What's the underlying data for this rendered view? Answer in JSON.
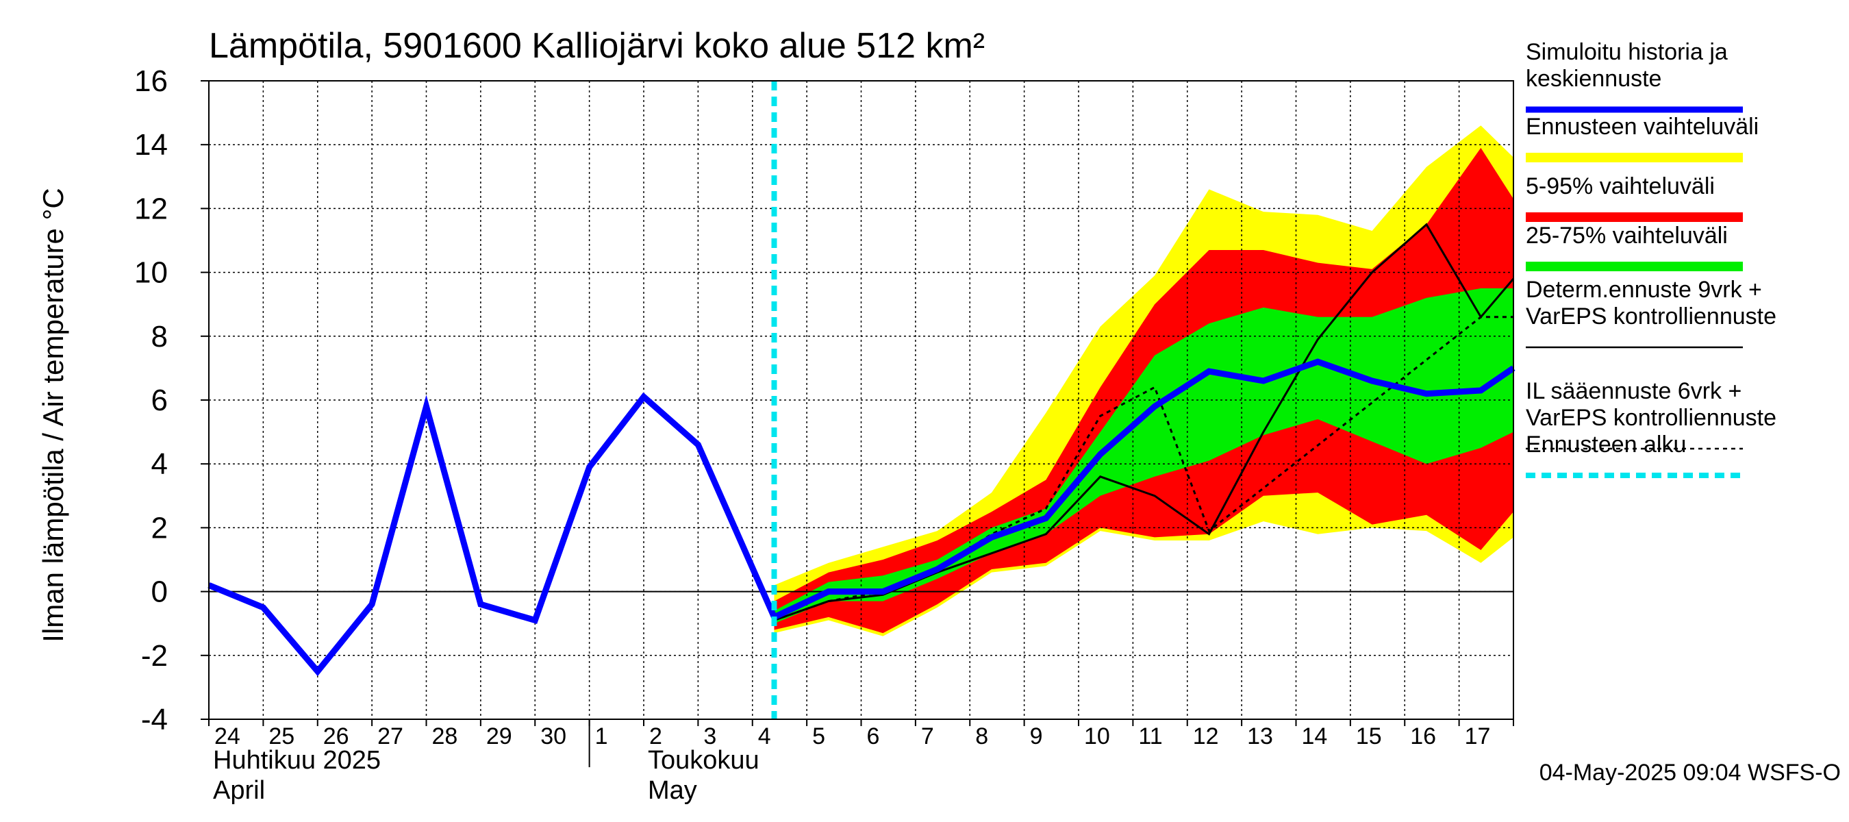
{
  "chart_data": {
    "type": "area",
    "title": "Lämpötila, 5901600 Kalliojärvi koko alue 512 km²",
    "ylabel": "Ilman lämpötila / Air temperature   °C",
    "ylim": [
      -4,
      16
    ],
    "yticks": [
      -4,
      -2,
      0,
      2,
      4,
      6,
      8,
      10,
      12,
      14,
      16
    ],
    "xlim": [
      0,
      24
    ],
    "day_labels": [
      "24",
      "25",
      "26",
      "27",
      "28",
      "29",
      "30",
      "1",
      "2",
      "3",
      "4",
      "5",
      "6",
      "7",
      "8",
      "9",
      "10",
      "11",
      "12",
      "13",
      "14",
      "15",
      "16",
      "17"
    ],
    "month_labels": [
      {
        "fi": "Huhtikuu  2025",
        "en": "April"
      },
      {
        "fi": "Toukokuu",
        "en": "May"
      }
    ],
    "month_break_x": 7,
    "forecast_start_x": 10.4,
    "timestamp": "04-May-2025 09:04 WSFS-O",
    "legend": [
      {
        "label": "Simuloitu historia ja\nkeskiennuste",
        "color": "#0000ff",
        "style": "line-thick"
      },
      {
        "label": "Ennusteen vaihteluväli",
        "color": "#ffff00",
        "style": "band"
      },
      {
        "label": "5-95% vaihteluväli",
        "color": "#ff0000",
        "style": "band"
      },
      {
        "label": "25-75% vaihteluväli",
        "color": "#00ee00",
        "style": "band"
      },
      {
        "label": "Determ.ennuste 9vrk  +\nVarEPS kontrolliennuste",
        "color": "#000000",
        "style": "line"
      },
      {
        "label": "IL sääennuste 6vrk  +\n  VarEPS kontrolliennuste",
        "color": "#000000",
        "style": "dashed"
      },
      {
        "label": "Ennusteen alku",
        "color": "#00e5ee",
        "style": "dashed-thick"
      }
    ],
    "band_x": [
      10.4,
      11.4,
      12.4,
      13.4,
      14.4,
      15.4,
      16.4,
      17.4,
      18.4,
      19.4,
      20.4,
      21.4,
      22.4,
      23.4,
      24.0
    ],
    "bands": {
      "ensemble_range": {
        "upper": [
          0.2,
          0.9,
          1.4,
          1.9,
          3.1,
          5.6,
          8.3,
          9.9,
          12.6,
          11.9,
          11.8,
          11.3,
          13.3,
          14.6,
          13.6
        ],
        "lower": [
          -1.3,
          -0.9,
          -1.4,
          -0.5,
          0.6,
          0.8,
          1.9,
          1.6,
          1.6,
          2.2,
          1.8,
          2.0,
          1.9,
          0.9,
          1.7
        ]
      },
      "p5_95": {
        "upper": [
          -0.3,
          0.6,
          1.0,
          1.6,
          2.5,
          3.5,
          6.4,
          9.0,
          10.7,
          10.7,
          10.3,
          10.1,
          11.5,
          13.9,
          12.3
        ]
      },
      "p25_75": {
        "upper": [
          -0.6,
          0.3,
          0.5,
          1.0,
          2.0,
          2.6,
          5.0,
          7.4,
          8.4,
          8.9,
          8.6,
          8.6,
          9.2,
          9.5,
          9.5
        ],
        "lower": [
          -1.0,
          -0.3,
          -0.3,
          0.4,
          1.2,
          1.8,
          3.0,
          3.6,
          4.1,
          4.9,
          5.4,
          4.7,
          4.0,
          4.5,
          5.0
        ]
      }
    },
    "p5_lower": [
      -1.2,
      -0.8,
      -1.3,
      -0.4,
      0.7,
      0.9,
      2.0,
      1.7,
      1.8,
      3.0,
      3.1,
      2.1,
      2.4,
      1.3,
      2.5
    ],
    "series": [
      {
        "name": "Simuloitu historia ja keskiennuste",
        "x": [
          0,
          1,
          2,
          3,
          4,
          5,
          6,
          7,
          8,
          9,
          10.4,
          11.4,
          12.4,
          13.4,
          14.4,
          15.4,
          16.4,
          17.4,
          18.4,
          19.4,
          20.4,
          21.4,
          22.4,
          23.4,
          24.0
        ],
        "values": [
          0.2,
          -0.5,
          -2.5,
          -0.4,
          5.8,
          -0.4,
          -0.9,
          3.9,
          6.1,
          4.6,
          -0.8,
          0.0,
          0.0,
          0.7,
          1.7,
          2.3,
          4.3,
          5.8,
          6.9,
          6.6,
          7.2,
          6.6,
          6.2,
          6.3,
          7.0
        ]
      },
      {
        "name": "Determ.ennuste 9vrk + VarEPS kontrolliennuste",
        "x": [
          7,
          8,
          9,
          10.4,
          11.4,
          12.4,
          13.4,
          14.4,
          15.4,
          16.4,
          17.4,
          18.4,
          19.4,
          20.4,
          21.4,
          22.4,
          23.4,
          24.0
        ],
        "values": [
          3.9,
          6.1,
          4.6,
          -0.9,
          -0.3,
          -0.1,
          0.6,
          1.2,
          1.8,
          3.6,
          3.0,
          1.8,
          5.0,
          7.9,
          10.0,
          11.5,
          8.6,
          9.8
        ]
      },
      {
        "name": "IL sääennuste 6vrk + VarEPS kontrolliennuste",
        "x": [
          10.4,
          11.4,
          12.4,
          13.4,
          14.4,
          15.4,
          16.4,
          17.4,
          18.4,
          23.4,
          24.0
        ],
        "values": [
          -0.9,
          -0.3,
          0.0,
          0.7,
          1.8,
          2.6,
          5.5,
          6.4,
          1.9,
          8.6,
          8.6
        ]
      }
    ]
  }
}
